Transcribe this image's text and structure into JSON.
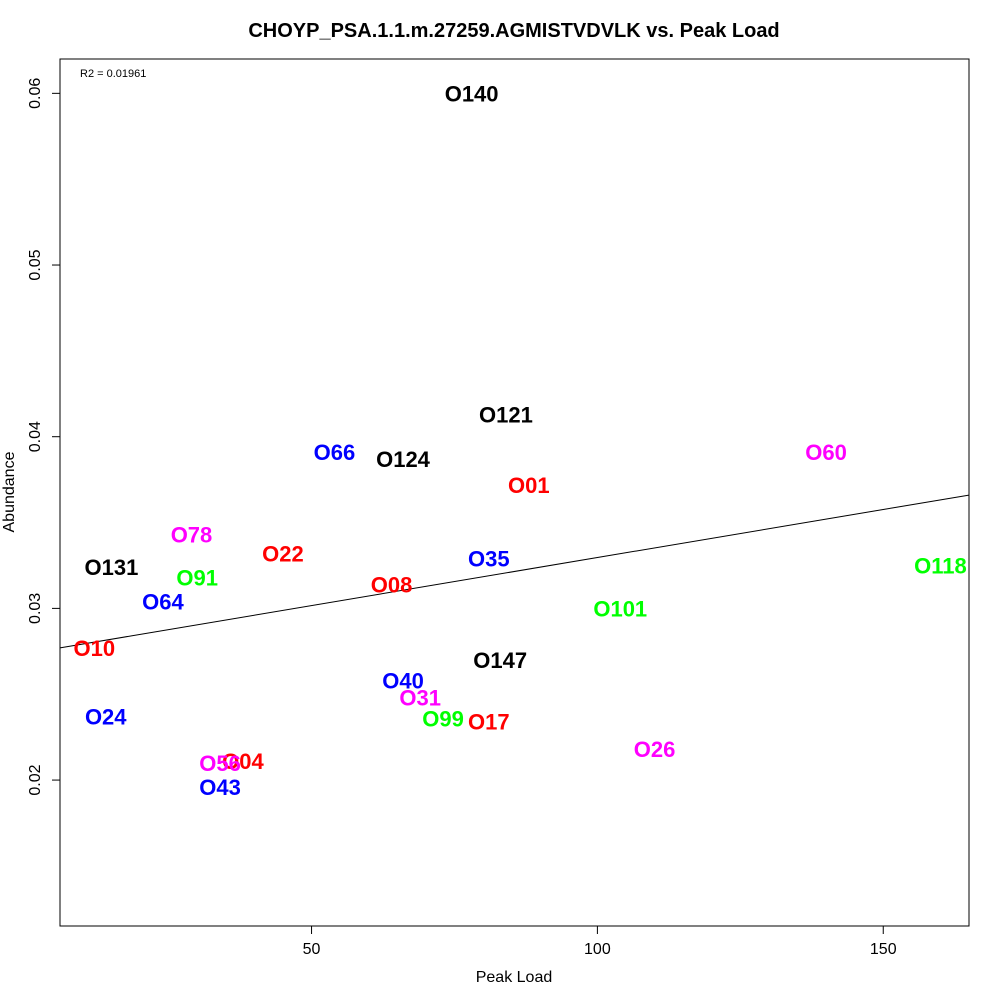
{
  "chart_data": {
    "type": "scatter",
    "title": "CHOYP_PSA.1.1.m.27259.AGMISTVDVLK vs. Peak Load",
    "xlabel": "Peak Load",
    "ylabel": "Abundance",
    "xlim": [
      6,
      165
    ],
    "ylim": [
      0.0115,
      0.062
    ],
    "xticks": [
      50,
      100,
      150
    ],
    "yticks": [
      0.02,
      0.03,
      0.04,
      0.05,
      0.06
    ],
    "annotation": "R2 = 0.01961",
    "grid": false,
    "legend": "none",
    "regression_line": {
      "x": [
        6,
        165
      ],
      "y": [
        0.0277,
        0.0366
      ]
    },
    "points": [
      {
        "label": "O140",
        "x": 78,
        "y": 0.06,
        "color": "#000000"
      },
      {
        "label": "O121",
        "x": 84,
        "y": 0.0413,
        "color": "#000000"
      },
      {
        "label": "O124",
        "x": 66,
        "y": 0.0387,
        "color": "#000000"
      },
      {
        "label": "O66",
        "x": 54,
        "y": 0.0391,
        "color": "#0000ff"
      },
      {
        "label": "O01",
        "x": 88,
        "y": 0.0372,
        "color": "#ff0000"
      },
      {
        "label": "O60",
        "x": 140,
        "y": 0.0391,
        "color": "#ff00ff"
      },
      {
        "label": "O118",
        "x": 160,
        "y": 0.0325,
        "color": "#00ff00"
      },
      {
        "label": "O78",
        "x": 29,
        "y": 0.0343,
        "color": "#ff00ff"
      },
      {
        "label": "O22",
        "x": 45,
        "y": 0.0332,
        "color": "#ff0000"
      },
      {
        "label": "O131",
        "x": 15,
        "y": 0.0324,
        "color": "#000000"
      },
      {
        "label": "O91",
        "x": 30,
        "y": 0.0318,
        "color": "#00ff00"
      },
      {
        "label": "O35",
        "x": 81,
        "y": 0.0329,
        "color": "#0000ff"
      },
      {
        "label": "O08",
        "x": 64,
        "y": 0.0314,
        "color": "#ff0000"
      },
      {
        "label": "O64",
        "x": 24,
        "y": 0.0304,
        "color": "#0000ff"
      },
      {
        "label": "O101",
        "x": 104,
        "y": 0.03,
        "color": "#00ff00"
      },
      {
        "label": "O10",
        "x": 12,
        "y": 0.0277,
        "color": "#ff0000"
      },
      {
        "label": "O147",
        "x": 83,
        "y": 0.027,
        "color": "#000000"
      },
      {
        "label": "O40",
        "x": 66,
        "y": 0.0258,
        "color": "#0000ff"
      },
      {
        "label": "O31",
        "x": 69,
        "y": 0.0248,
        "color": "#ff00ff"
      },
      {
        "label": "O24",
        "x": 14,
        "y": 0.0237,
        "color": "#0000ff"
      },
      {
        "label": "O99",
        "x": 73,
        "y": 0.0236,
        "color": "#00ff00"
      },
      {
        "label": "O17",
        "x": 81,
        "y": 0.0234,
        "color": "#ff0000"
      },
      {
        "label": "O26",
        "x": 110,
        "y": 0.0218,
        "color": "#ff00ff"
      },
      {
        "label": "O04",
        "x": 38,
        "y": 0.0211,
        "color": "#ff0000"
      },
      {
        "label": "O56",
        "x": 34,
        "y": 0.021,
        "color": "#ff00ff"
      },
      {
        "label": "O43",
        "x": 34,
        "y": 0.0196,
        "color": "#0000ff"
      }
    ]
  }
}
